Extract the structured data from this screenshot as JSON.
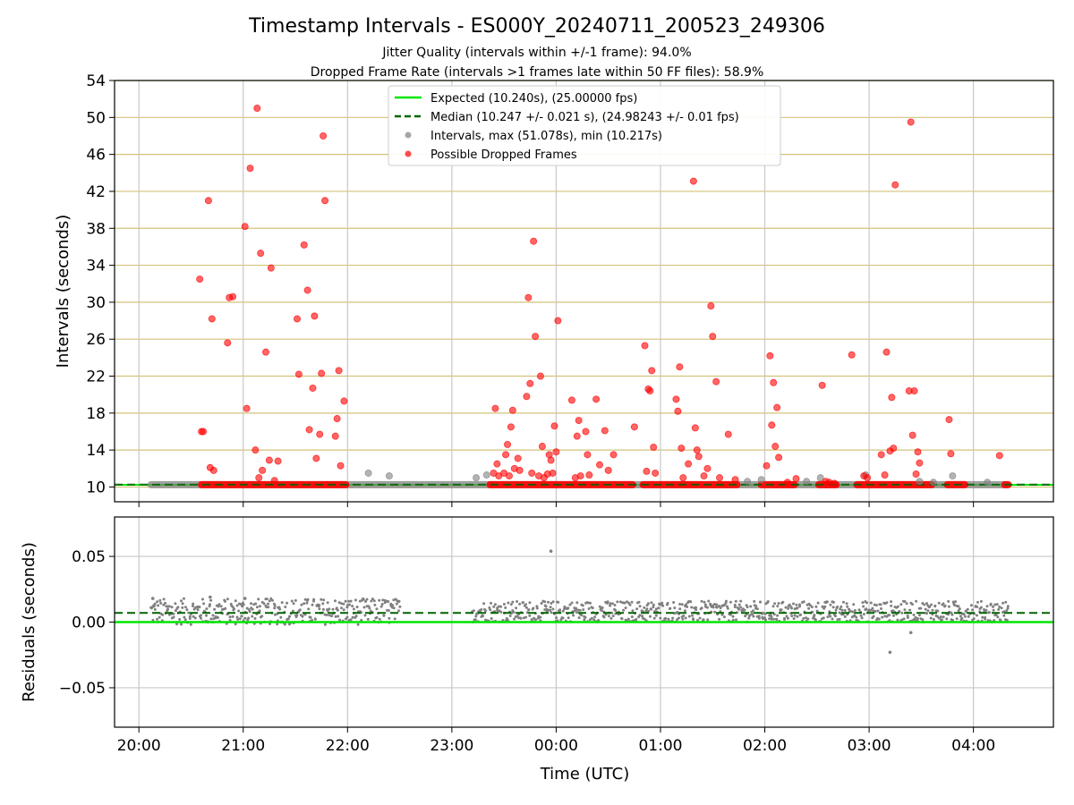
{
  "colors": {
    "expected": "#00e600",
    "median": "#006400",
    "intervals": "#808080",
    "dropped": "#ff0000",
    "top_grid": "#d4c27a",
    "vgrid": "#c8c8c8"
  },
  "chart_data": [
    {
      "type": "scatter",
      "title": "Timestamp Intervals - ES000Y_20240711_200523_249306",
      "subtitle_lines": [
        "Jitter Quality (intervals within +/-1 frame): 94.0%",
        "Dropped Frame Rate (intervals >1 frames late within 50 FF files): 58.9%"
      ],
      "xlabel": "",
      "ylabel": "Intervals (seconds)",
      "xlim": [
        "19:46",
        "04:46"
      ],
      "ylim": [
        8.4,
        54
      ],
      "xticks": [
        "20:00",
        "21:00",
        "22:00",
        "23:00",
        "00:00",
        "01:00",
        "02:00",
        "03:00",
        "04:00"
      ],
      "yticks": [
        10,
        14,
        18,
        22,
        26,
        30,
        34,
        38,
        42,
        46,
        50,
        54
      ],
      "grid": true,
      "legend_position": "upper center",
      "legend": [
        "Expected (10.240s), (25.00000 fps)",
        "Median (10.247 +/- 0.021 s), (24.98243 +/- 0.01 fps)",
        "Intervals, max (51.078s), min (10.217s)",
        "Possible Dropped Frames"
      ],
      "expected": 10.24,
      "median": 10.247,
      "baseline_ranges": [
        {
          "series": "Intervals",
          "from": "20:07",
          "to": "04:19",
          "y": 10.25
        },
        {
          "series": "Possible Dropped Frames",
          "from": "20:36",
          "to": "21:59",
          "y": 10.25
        },
        {
          "series": "Possible Dropped Frames",
          "from": "23:22",
          "to": "00:44",
          "y": 10.25
        },
        {
          "series": "Possible Dropped Frames",
          "from": "00:50",
          "to": "01:44",
          "y": 10.25
        },
        {
          "series": "Possible Dropped Frames",
          "from": "01:58",
          "to": "02:17",
          "y": 10.25
        },
        {
          "series": "Possible Dropped Frames",
          "from": "02:31",
          "to": "02:41",
          "y": 10.25
        },
        {
          "series": "Possible Dropped Frames",
          "from": "02:53",
          "to": "03:36",
          "y": 10.25
        },
        {
          "series": "Possible Dropped Frames",
          "from": "03:45",
          "to": "03:55",
          "y": 10.25
        },
        {
          "series": "Possible Dropped Frames",
          "from": "04:18",
          "to": "04:20",
          "y": 10.25
        }
      ],
      "series": [
        {
          "name": "Intervals",
          "points": [
            [
              "22:12",
              11.5
            ],
            [
              "22:24",
              11.2
            ],
            [
              "23:14",
              11.0
            ],
            [
              "23:20",
              11.3
            ],
            [
              "01:50",
              10.6
            ],
            [
              "01:58",
              10.8
            ],
            [
              "02:24",
              10.6
            ],
            [
              "02:32",
              11.0
            ],
            [
              "02:58",
              11.3
            ],
            [
              "03:29",
              10.6
            ],
            [
              "03:37",
              10.5
            ],
            [
              "03:48",
              11.2
            ],
            [
              "04:08",
              10.5
            ]
          ]
        },
        {
          "name": "Possible Dropped Frames",
          "points": [
            [
              "20:35",
              32.5
            ],
            [
              "20:36",
              16.0
            ],
            [
              "20:37",
              16.0
            ],
            [
              "20:40",
              41.0
            ],
            [
              "20:41",
              12.1
            ],
            [
              "20:42",
              28.2
            ],
            [
              "20:43",
              11.8
            ],
            [
              "20:51",
              25.6
            ],
            [
              "20:52",
              30.5
            ],
            [
              "20:54",
              30.6
            ],
            [
              "21:01",
              38.2
            ],
            [
              "21:02",
              18.5
            ],
            [
              "21:04",
              44.5
            ],
            [
              "21:07",
              14.0
            ],
            [
              "21:08",
              51.0
            ],
            [
              "21:09",
              11.0
            ],
            [
              "21:10",
              35.3
            ],
            [
              "21:11",
              11.8
            ],
            [
              "21:13",
              24.6
            ],
            [
              "21:15",
              12.9
            ],
            [
              "21:16",
              33.7
            ],
            [
              "21:18",
              10.7
            ],
            [
              "21:20",
              12.8
            ],
            [
              "21:31",
              28.2
            ],
            [
              "21:32",
              22.2
            ],
            [
              "21:35",
              36.2
            ],
            [
              "21:37",
              31.3
            ],
            [
              "21:38",
              16.2
            ],
            [
              "21:40",
              20.7
            ],
            [
              "21:41",
              28.5
            ],
            [
              "21:42",
              13.1
            ],
            [
              "21:44",
              15.7
            ],
            [
              "21:45",
              22.3
            ],
            [
              "21:46",
              48.0
            ],
            [
              "21:47",
              41.0
            ],
            [
              "21:53",
              15.5
            ],
            [
              "21:54",
              17.4
            ],
            [
              "21:55",
              22.6
            ],
            [
              "21:56",
              12.3
            ],
            [
              "21:58",
              19.3
            ],
            [
              "23:24",
              11.5
            ],
            [
              "23:25",
              18.5
            ],
            [
              "23:26",
              12.5
            ],
            [
              "23:27",
              11.2
            ],
            [
              "23:30",
              11.5
            ],
            [
              "23:31",
              13.5
            ],
            [
              "23:32",
              14.6
            ],
            [
              "23:33",
              11.2
            ],
            [
              "23:34",
              16.5
            ],
            [
              "23:35",
              18.3
            ],
            [
              "23:36",
              12.0
            ],
            [
              "23:38",
              13.1
            ],
            [
              "23:39",
              11.8
            ],
            [
              "23:43",
              19.8
            ],
            [
              "23:44",
              30.5
            ],
            [
              "23:45",
              21.2
            ],
            [
              "23:46",
              11.5
            ],
            [
              "23:47",
              36.6
            ],
            [
              "23:48",
              26.3
            ],
            [
              "23:50",
              11.2
            ],
            [
              "23:51",
              22.0
            ],
            [
              "23:52",
              14.4
            ],
            [
              "23:53",
              11.0
            ],
            [
              "23:55",
              11.4
            ],
            [
              "23:56",
              13.5
            ],
            [
              "23:57",
              12.9
            ],
            [
              "23:58",
              11.5
            ],
            [
              "23:59",
              16.6
            ],
            [
              "00:00",
              13.8
            ],
            [
              "00:01",
              28.0
            ],
            [
              "00:09",
              19.4
            ],
            [
              "00:11",
              11.0
            ],
            [
              "00:12",
              15.5
            ],
            [
              "00:13",
              17.2
            ],
            [
              "00:14",
              11.2
            ],
            [
              "00:17",
              16.0
            ],
            [
              "00:18",
              13.5
            ],
            [
              "00:19",
              11.3
            ],
            [
              "00:23",
              19.5
            ],
            [
              "00:25",
              12.4
            ],
            [
              "00:28",
              16.1
            ],
            [
              "00:30",
              11.8
            ],
            [
              "00:33",
              13.5
            ],
            [
              "00:45",
              16.5
            ],
            [
              "00:51",
              25.3
            ],
            [
              "00:52",
              11.7
            ],
            [
              "00:53",
              20.6
            ],
            [
              "00:54",
              20.4
            ],
            [
              "00:55",
              22.6
            ],
            [
              "00:56",
              14.3
            ],
            [
              "00:57",
              11.5
            ],
            [
              "01:09",
              19.5
            ],
            [
              "01:10",
              18.2
            ],
            [
              "01:11",
              23.0
            ],
            [
              "01:12",
              14.2
            ],
            [
              "01:13",
              11.0
            ],
            [
              "01:16",
              12.5
            ],
            [
              "01:19",
              43.1
            ],
            [
              "01:20",
              16.4
            ],
            [
              "01:21",
              14.0
            ],
            [
              "01:22",
              13.3
            ],
            [
              "01:25",
              11.2
            ],
            [
              "01:27",
              12.0
            ],
            [
              "01:29",
              29.6
            ],
            [
              "01:30",
              26.3
            ],
            [
              "01:32",
              21.4
            ],
            [
              "01:34",
              11.0
            ],
            [
              "01:39",
              15.7
            ],
            [
              "01:43",
              10.8
            ],
            [
              "02:01",
              12.3
            ],
            [
              "02:03",
              24.2
            ],
            [
              "02:04",
              16.7
            ],
            [
              "02:05",
              21.3
            ],
            [
              "02:06",
              14.4
            ],
            [
              "02:07",
              18.6
            ],
            [
              "02:08",
              13.2
            ],
            [
              "02:13",
              10.5
            ],
            [
              "02:18",
              10.9
            ],
            [
              "02:33",
              21.0
            ],
            [
              "02:35",
              10.6
            ],
            [
              "02:37",
              10.5
            ],
            [
              "02:40",
              10.4
            ],
            [
              "02:57",
              11.2
            ],
            [
              "02:59",
              11.0
            ],
            [
              "02:50",
              24.3
            ],
            [
              "03:07",
              13.5
            ],
            [
              "03:09",
              11.3
            ],
            [
              "03:10",
              24.6
            ],
            [
              "03:12",
              13.9
            ],
            [
              "03:13",
              19.7
            ],
            [
              "03:14",
              14.2
            ],
            [
              "03:15",
              42.7
            ],
            [
              "03:23",
              20.4
            ],
            [
              "03:24",
              49.5
            ],
            [
              "03:25",
              15.6
            ],
            [
              "03:26",
              20.4
            ],
            [
              "03:27",
              11.4
            ],
            [
              "03:28",
              13.8
            ],
            [
              "03:29",
              12.6
            ],
            [
              "03:46",
              17.3
            ],
            [
              "03:47",
              13.6
            ],
            [
              "04:15",
              13.4
            ]
          ]
        }
      ]
    },
    {
      "type": "scatter",
      "xlabel": "Time (UTC)",
      "ylabel": "Residuals (seconds)",
      "xlim": [
        "19:46",
        "04:46"
      ],
      "ylim": [
        -0.08,
        0.08
      ],
      "xticks": [
        "20:00",
        "21:00",
        "22:00",
        "23:00",
        "00:00",
        "01:00",
        "02:00",
        "03:00",
        "04:00"
      ],
      "ytick_labels": [
        {
          "value": 0.05,
          "label": "0.05"
        },
        {
          "value": 0.0,
          "label": "0.00"
        },
        {
          "value": -0.05,
          "label": "−0.05"
        }
      ],
      "grid": true,
      "expected_residual": 0.0,
      "median_residual": 0.007,
      "outliers": [
        [
          "20:08",
          0.018
        ],
        [
          "23:57",
          0.054
        ],
        [
          "03:12",
          -0.023
        ],
        [
          "03:24",
          -0.008
        ],
        [
          "20:41",
          0.019
        ],
        [
          "21:01",
          0.018
        ]
      ],
      "residual_bands": [
        {
          "from": "20:07",
          "to": "22:30",
          "ymin": -0.002,
          "ymax": 0.018
        },
        {
          "from": "23:12",
          "to": "04:20",
          "ymin": 0.0,
          "ymax": 0.016
        }
      ]
    }
  ]
}
